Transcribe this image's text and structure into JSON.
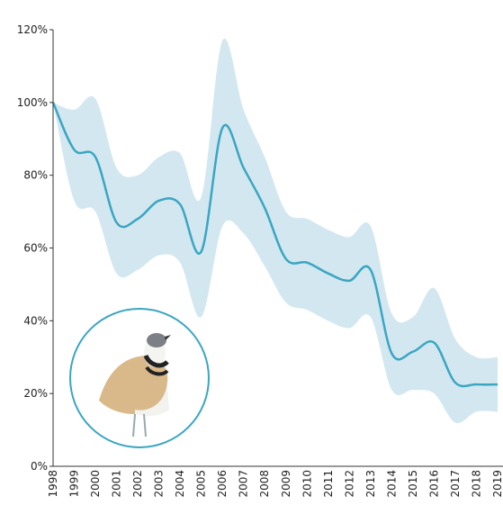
{
  "chart_data": {
    "type": "line",
    "categories": [
      "1998",
      "1999",
      "2000",
      "2001",
      "2002",
      "2003",
      "2004",
      "2005",
      "2006",
      "2007",
      "2008",
      "2009",
      "2010",
      "2011",
      "2012",
      "2013",
      "2014",
      "2015",
      "2016",
      "2017",
      "2018",
      "2019"
    ],
    "values": [
      100,
      87,
      85,
      67,
      68,
      73,
      72,
      59,
      93,
      82,
      71,
      57,
      56,
      53,
      51,
      54,
      31,
      31.5,
      34,
      23,
      22.5,
      22.5
    ],
    "upper": [
      100,
      98,
      101,
      82,
      80,
      85,
      86,
      74,
      117,
      98,
      85,
      70,
      68,
      65,
      63,
      66,
      42,
      41,
      49,
      35,
      30,
      30
    ],
    "lower": [
      100,
      73,
      70,
      53,
      54,
      58,
      56,
      41,
      66,
      64,
      55,
      45,
      43,
      40,
      38,
      41,
      21,
      21,
      20,
      12,
      15,
      15
    ],
    "color": "#3aa6c2",
    "band_color": "#d3e7f0",
    "ylim": [
      0,
      120
    ],
    "yticks": [
      {
        "value": 0,
        "label": "0%"
      },
      {
        "value": 20,
        "label": "20%"
      },
      {
        "value": 40,
        "label": "40%"
      },
      {
        "value": 60,
        "label": "60%"
      },
      {
        "value": 80,
        "label": "80%"
      },
      {
        "value": 100,
        "label": "100%"
      },
      {
        "value": 120,
        "label": "120%"
      }
    ]
  }
}
